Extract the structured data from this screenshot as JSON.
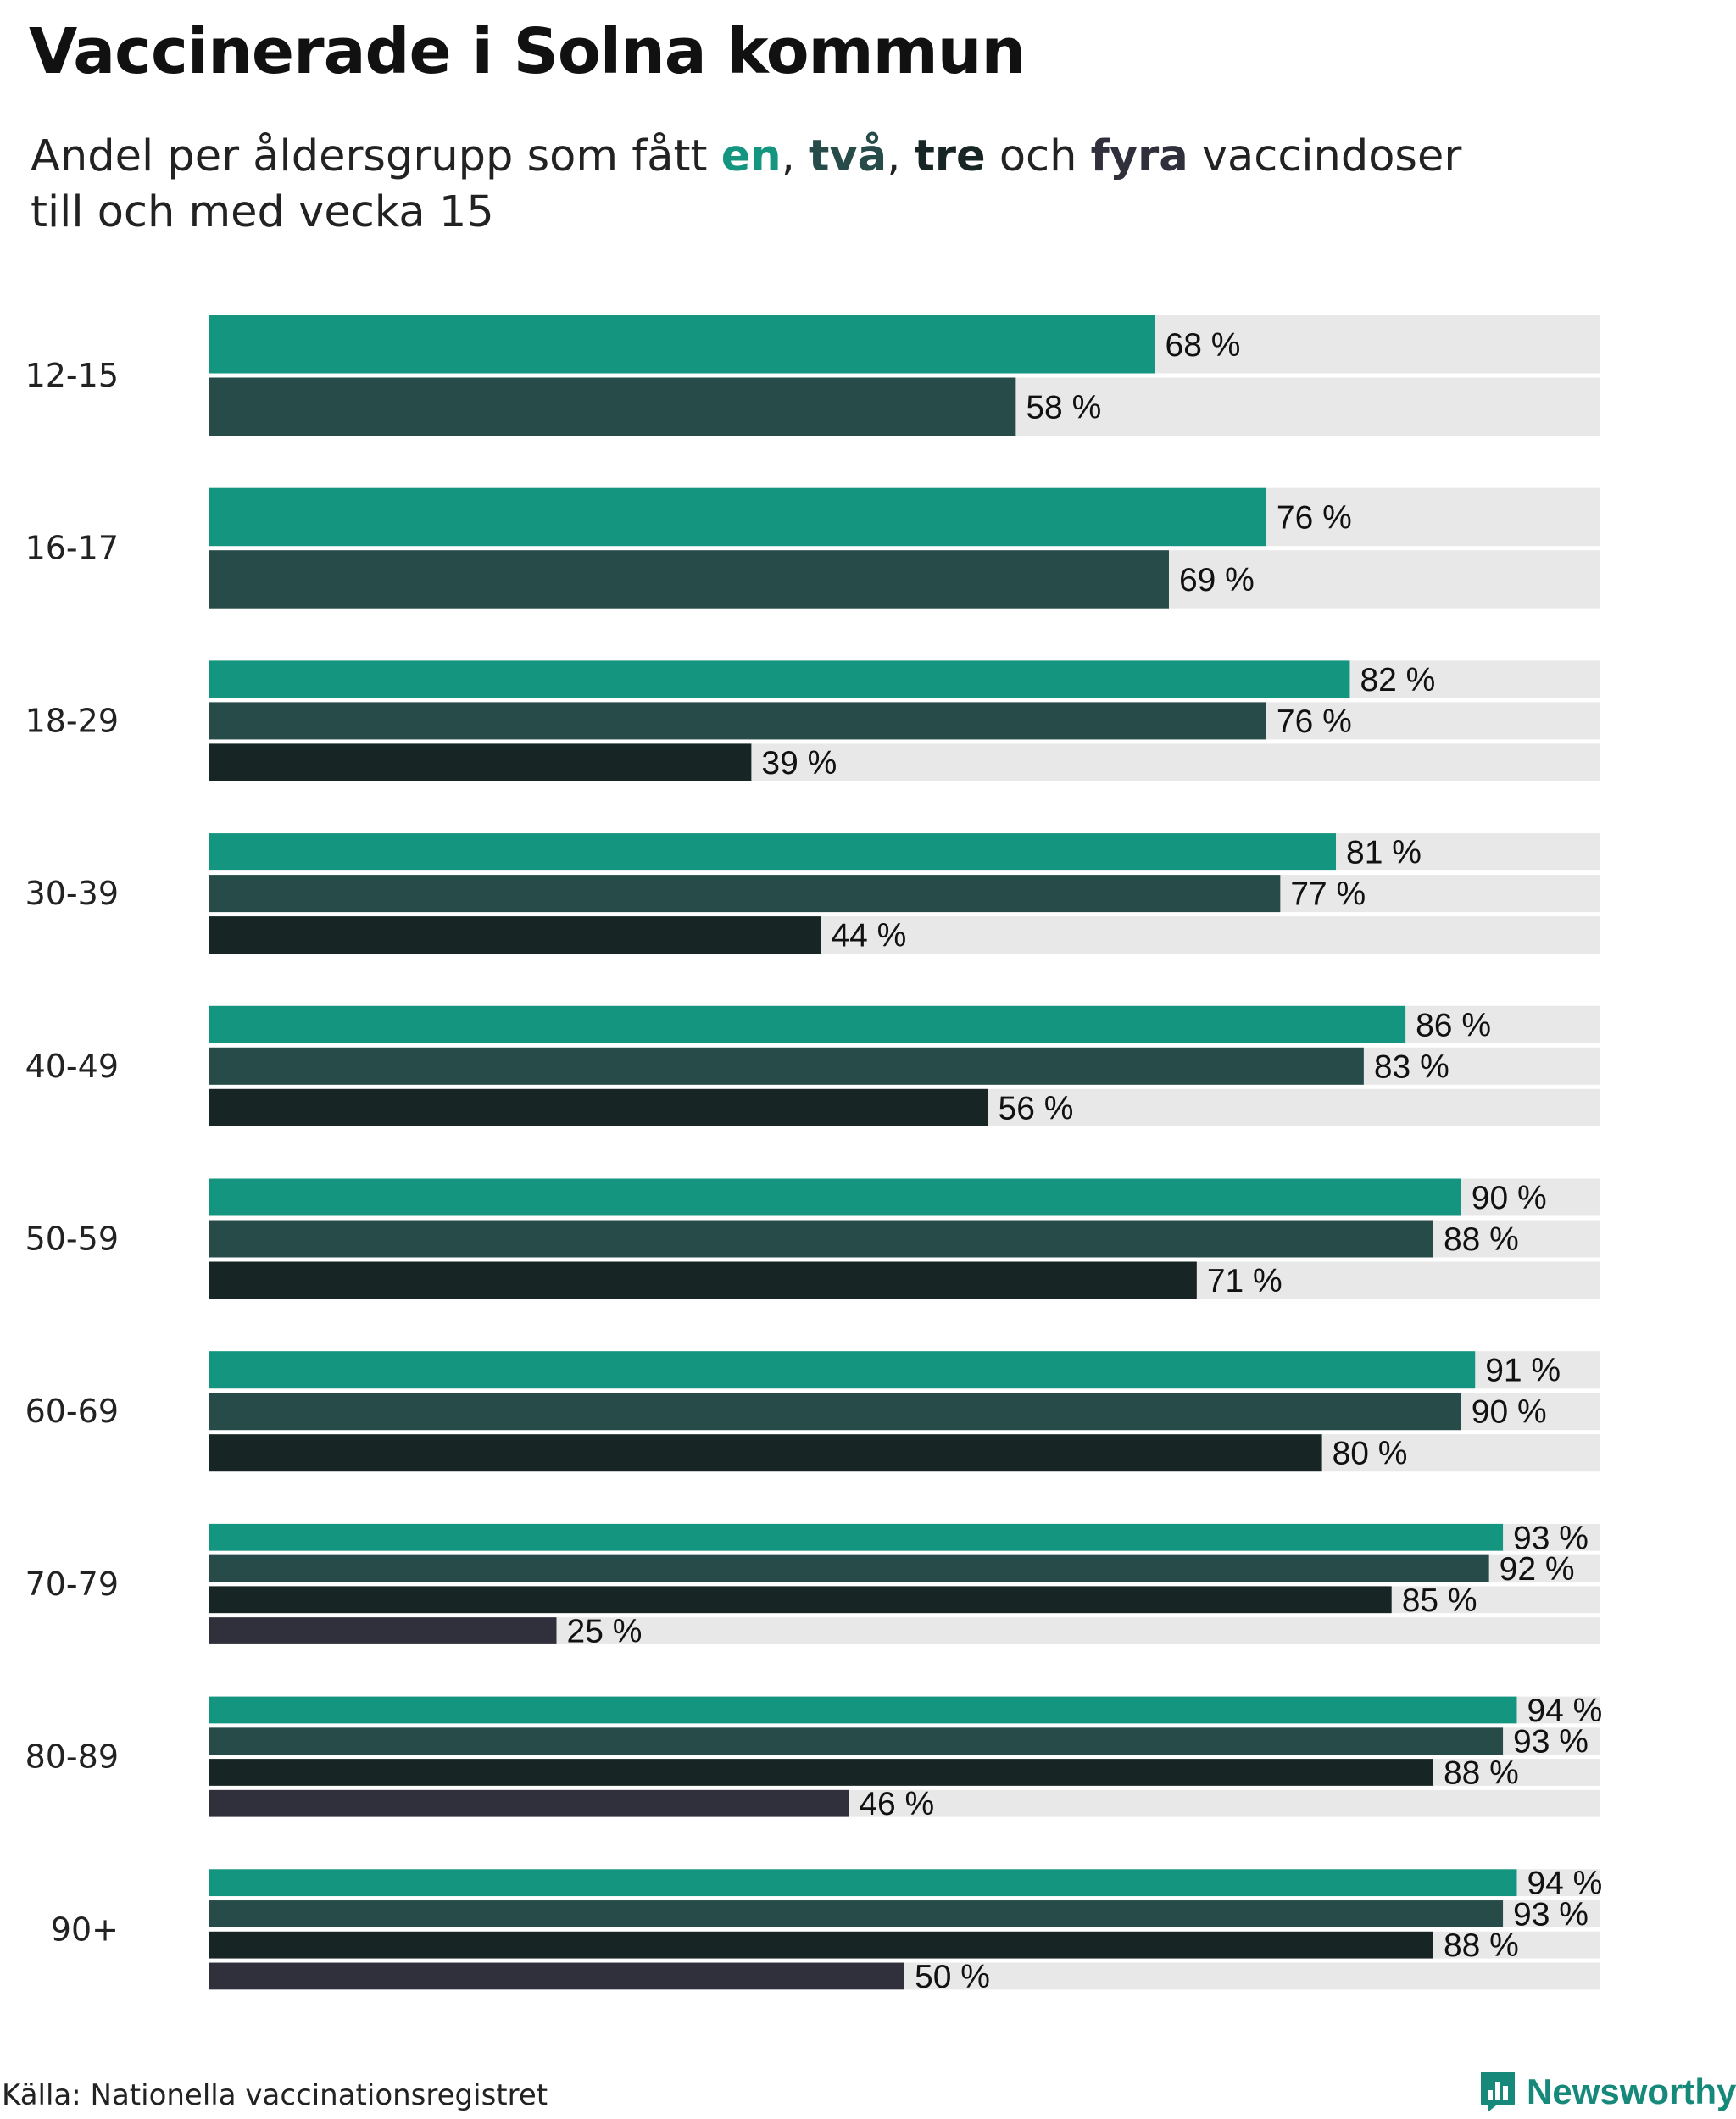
{
  "title": "Vaccinerade i Solna kommun",
  "subtitle": {
    "prefix": "Andel per åldersgrupp som fått ",
    "dose_words": [
      "en",
      "två",
      "tre",
      "fyra"
    ],
    "sep_1": ", ",
    "sep_2": ", ",
    "sep_3": " och ",
    "suffix": " vaccindoser",
    "line2": "till och med vecka 15"
  },
  "colors": {
    "dose1": "#14957f",
    "dose2": "#264b48",
    "dose3": "#172624",
    "dose4": "#30303c",
    "track": "#e8e8e8",
    "brand": "#16897a"
  },
  "source": "Källa: Nationella vaccinationsregistret",
  "brand": {
    "name": "Newsworthy",
    "icon": "bar-chart-logo-icon"
  },
  "chart_data": {
    "type": "bar",
    "orientation": "horizontal",
    "title": "Vaccinerade i Solna kommun",
    "unit": "%",
    "xlim": [
      0,
      100
    ],
    "grid": false,
    "categories": [
      "12-15",
      "16-17",
      "18-29",
      "30-39",
      "40-49",
      "50-59",
      "60-69",
      "70-79",
      "80-89",
      "90+"
    ],
    "series": [
      {
        "name": "en",
        "color_key": "dose1",
        "values": [
          68,
          76,
          82,
          81,
          86,
          90,
          91,
          93,
          94,
          94
        ]
      },
      {
        "name": "två",
        "color_key": "dose2",
        "values": [
          58,
          69,
          76,
          77,
          83,
          88,
          90,
          92,
          93,
          93
        ]
      },
      {
        "name": "tre",
        "color_key": "dose3",
        "values": [
          null,
          null,
          39,
          44,
          56,
          71,
          80,
          85,
          88,
          88
        ]
      },
      {
        "name": "fyra",
        "color_key": "dose4",
        "values": [
          null,
          null,
          null,
          null,
          null,
          null,
          null,
          25,
          46,
          50
        ]
      }
    ]
  }
}
